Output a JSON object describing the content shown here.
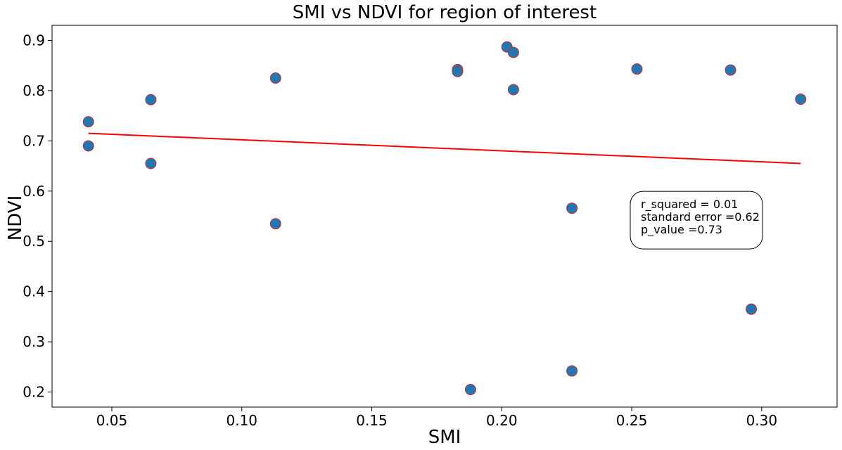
{
  "chart_data": {
    "type": "scatter",
    "title": "SMI vs NDVI for region of interest",
    "xlabel": "SMI",
    "ylabel": "NDVI",
    "xlim": [
      0.027,
      0.329
    ],
    "ylim": [
      0.17,
      0.93
    ],
    "x_ticks": [
      0.05,
      0.1,
      0.15,
      0.2,
      0.25,
      0.3
    ],
    "x_tick_labels": [
      "0.05",
      "0.10",
      "0.15",
      "0.20",
      "0.25",
      "0.30"
    ],
    "y_ticks": [
      0.2,
      0.3,
      0.4,
      0.5,
      0.6,
      0.7,
      0.8,
      0.9
    ],
    "y_tick_labels": [
      "0.2",
      "0.3",
      "0.4",
      "0.5",
      "0.6",
      "0.7",
      "0.8",
      "0.9"
    ],
    "points": [
      {
        "x": 0.041,
        "y": 0.738
      },
      {
        "x": 0.041,
        "y": 0.69
      },
      {
        "x": 0.065,
        "y": 0.782
      },
      {
        "x": 0.065,
        "y": 0.655
      },
      {
        "x": 0.113,
        "y": 0.825
      },
      {
        "x": 0.113,
        "y": 0.535
      },
      {
        "x": 0.183,
        "y": 0.842
      },
      {
        "x": 0.183,
        "y": 0.838
      },
      {
        "x": 0.188,
        "y": 0.205
      },
      {
        "x": 0.202,
        "y": 0.887
      },
      {
        "x": 0.2045,
        "y": 0.876
      },
      {
        "x": 0.2045,
        "y": 0.802
      },
      {
        "x": 0.227,
        "y": 0.566
      },
      {
        "x": 0.227,
        "y": 0.242
      },
      {
        "x": 0.252,
        "y": 0.843
      },
      {
        "x": 0.288,
        "y": 0.841
      },
      {
        "x": 0.296,
        "y": 0.365
      },
      {
        "x": 0.315,
        "y": 0.783
      }
    ],
    "fit_line": {
      "x": [
        0.041,
        0.315
      ],
      "y": [
        0.715,
        0.655
      ]
    },
    "marker_fill": "#1f77b4",
    "marker_edge": "#d62728",
    "line_color": "#ff0000",
    "grid": false,
    "annotation": {
      "lines": [
        "r_squared = 0.01",
        "standard error =0.62",
        "p_value =0.73"
      ],
      "anchor": {
        "x": 0.2535,
        "y": 0.531
      }
    }
  }
}
